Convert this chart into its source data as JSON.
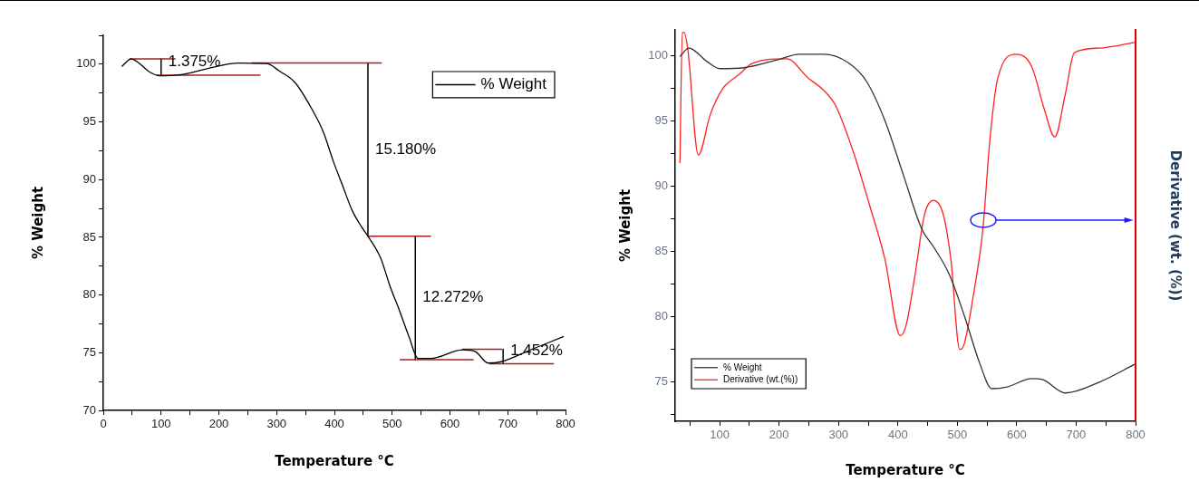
{
  "chart_data": [
    {
      "type": "line",
      "xlabel": "Temperature °C",
      "ylabel": "% Weight",
      "xlim": [
        0,
        800
      ],
      "ylim": [
        70,
        102.5
      ],
      "xticks": [
        0,
        {
          "value": 50,
          "label": null
        },
        100,
        {
          "value": 150,
          "label": null
        },
        200,
        {
          "value": 250,
          "label": null
        },
        300,
        {
          "value": 350,
          "label": null
        },
        400,
        {
          "value": 450,
          "label": null
        },
        500,
        {
          "value": 550,
          "label": null
        },
        600,
        {
          "value": 650,
          "label": null
        },
        700,
        {
          "value": 750,
          "label": null
        },
        800
      ],
      "yticks": [
        70,
        {
          "value": 72.5,
          "label": null
        },
        75,
        {
          "value": 77.5,
          "label": null
        },
        80,
        {
          "value": 82.5,
          "label": null
        },
        85,
        {
          "value": 87.5,
          "label": null
        },
        90,
        {
          "value": 92.5,
          "label": null
        },
        95,
        {
          "value": 97.5,
          "label": null
        },
        100,
        {
          "value": 102.5,
          "label": null
        }
      ],
      "grid": false,
      "legend": "top right",
      "marker": "none",
      "line_style": "solid",
      "series": [
        {
          "name": "% Weight",
          "color": "#000000",
          "x": [
            32,
            48,
            81,
            97,
            135,
            196,
            234,
            283,
            305,
            332,
            360,
            381,
            398,
            414,
            431,
            447,
            458,
            480,
            496,
            513,
            529,
            545,
            567,
            622,
            644,
            666,
            687,
            742,
            797
          ],
          "values": [
            99.8,
            100.45,
            99.3,
            99.0,
            99.1,
            99.8,
            100.1,
            100.05,
            99.4,
            98.4,
            96.2,
            94.1,
            91.6,
            89.5,
            87.3,
            85.9,
            85.1,
            83.2,
            80.8,
            78.6,
            76.4,
            74.5,
            74.5,
            75.25,
            75.1,
            74.1,
            74.2,
            75.3,
            76.4
          ]
        },
        {
          "color": "#a52020",
          "x": [
            45,
            125
          ],
          "values": [
            100.46,
            100.46
          ]
        },
        {
          "color": "#a52020",
          "x": [
            92,
            272
          ],
          "values": [
            99.05,
            99.05
          ]
        },
        {
          "color": "#a52020",
          "x": [
            256,
            482
          ],
          "values": [
            100.1,
            100.1
          ]
        },
        {
          "color": "#a52020",
          "x": [
            458,
            567
          ],
          "values": [
            85.1,
            85.1
          ]
        },
        {
          "color": "#a52020",
          "x": [
            513,
            641
          ],
          "values": [
            74.4,
            74.4
          ]
        },
        {
          "color": "#a52020",
          "x": [
            621,
            690
          ],
          "values": [
            75.3,
            75.3
          ]
        },
        {
          "color": "#a52020",
          "x": [
            668,
            780
          ],
          "values": [
            74.05,
            74.05
          ]
        },
        {
          "color": "#000000",
          "x": [
            100,
            100
          ],
          "values": [
            100.46,
            99.05
          ]
        },
        {
          "color": "#000000",
          "x": [
            458,
            458
          ],
          "values": [
            100.1,
            85.1
          ]
        },
        {
          "color": "#000000",
          "x": [
            540,
            540
          ],
          "values": [
            85.1,
            74.4
          ]
        },
        {
          "color": "#000000",
          "x": [
            692,
            692
          ],
          "values": [
            75.3,
            74.05
          ]
        }
      ],
      "annotations": [
        "1.375%",
        "15.180%",
        "12.272%",
        "1.452%"
      ]
    },
    {
      "type": "line",
      "xlabel": "Temperature °C",
      "ylabel": "% Weight",
      "y2label": "Derivative (wt. (%))",
      "xlim": [
        25,
        800
      ],
      "ylim": [
        72,
        102
      ],
      "xticks": [
        {
          "value": 50,
          "label": null
        },
        100,
        {
          "value": 150,
          "label": null
        },
        200,
        {
          "value": 250,
          "label": null
        },
        300,
        {
          "value": 350,
          "label": null
        },
        400,
        {
          "value": 450,
          "label": null
        },
        500,
        {
          "value": 550,
          "label": null
        },
        600,
        {
          "value": 650,
          "label": null
        },
        700,
        {
          "value": 750,
          "label": null
        },
        800
      ],
      "yticks": [
        {
          "value": 72.5,
          "label": null
        },
        75,
        {
          "value": 77.5,
          "label": null
        },
        80,
        {
          "value": 82.5,
          "label": null
        },
        85,
        {
          "value": 87.5,
          "label": null
        },
        90,
        {
          "value": 92.5,
          "label": null
        },
        95,
        {
          "value": 97.5,
          "label": null
        },
        100
      ],
      "grid": false,
      "legend": "bottom left",
      "marker": "none",
      "line_style": "solid",
      "series": [
        {
          "name": "% Weight",
          "color": "#333333",
          "x": [
            33,
            48,
            79,
            100,
            141,
            198,
            234,
            275,
            316,
            347,
            378,
            409,
            440,
            460,
            486,
            512,
            538,
            558,
            584,
            625,
            643,
            682,
            738,
            800
          ],
          "values": [
            99.95,
            100.6,
            99.56,
            99.03,
            99.1,
            99.72,
            100.14,
            100.14,
            99.5,
            98.06,
            95.06,
            90.9,
            86.75,
            85.37,
            83.3,
            80.06,
            76.4,
            74.5,
            74.63,
            75.27,
            75.2,
            74.17,
            74.98,
            76.4
          ]
        },
        {
          "name": "Derivative (wt.(%))",
          "color": "#ff2020",
          "x": [
            33,
            37,
            40,
            46,
            64,
            84,
            105,
            131,
            156,
            213,
            249,
            275,
            295,
            326,
            352,
            378,
            404,
            414,
            429,
            445,
            460,
            476,
            489,
            504,
            512,
            527,
            543,
            555,
            568,
            599,
            625,
            646,
            664,
            682,
            697,
            738,
            800
          ],
          "values": [
            91.8,
            101.8,
            101.8,
            100.6,
            92.4,
            95.5,
            97.49,
            98.52,
            99.45,
            99.79,
            98.3,
            97.37,
            96.2,
            92.5,
            88.6,
            84.44,
            78.55,
            79.4,
            83.3,
            87.9,
            88.94,
            87.9,
            84.44,
            77.5,
            77.98,
            81.67,
            86.75,
            93.68,
            98.29,
            100.14,
            99.2,
            95.98,
            93.79,
            97.14,
            100.26,
            100.6,
            101.06
          ]
        }
      ]
    }
  ]
}
